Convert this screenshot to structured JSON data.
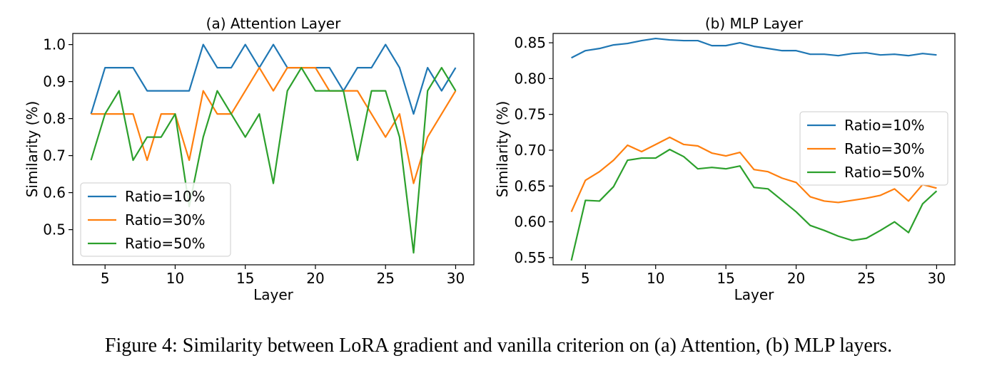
{
  "caption": "Figure 4: Similarity between LoRA gradient and vanilla criterion on (a) Attention, (b) MLP layers.",
  "chart_data": [
    {
      "type": "line",
      "title": "(a) Attention Layer",
      "xlabel": "Layer",
      "ylabel": "Similarity (%)",
      "xlim": [
        2.7,
        31.3
      ],
      "ylim": [
        0.405,
        1.03
      ],
      "xticks": [
        5,
        10,
        15,
        20,
        25,
        30
      ],
      "yticks": [
        0.5,
        0.6,
        0.7,
        0.8,
        0.9,
        1.0
      ],
      "ytick_labels": [
        "0.5",
        "0.6",
        "0.7",
        "0.8",
        "0.9",
        "1.0"
      ],
      "legend_position": "lower-left",
      "x": [
        4,
        5,
        6,
        7,
        8,
        9,
        10,
        11,
        12,
        13,
        14,
        15,
        16,
        17,
        18,
        19,
        20,
        21,
        22,
        23,
        24,
        25,
        26,
        27,
        28,
        29,
        30
      ],
      "series": [
        {
          "name": "Ratio=10%",
          "color": "#1f77b4",
          "values": [
            0.8125,
            0.9375,
            0.9375,
            0.9375,
            0.875,
            0.875,
            0.875,
            0.875,
            1.0,
            0.9375,
            0.9375,
            1.0,
            0.9375,
            1.0,
            0.9375,
            0.9375,
            0.9375,
            0.9375,
            0.875,
            0.9375,
            0.9375,
            1.0,
            0.9375,
            0.8125,
            0.9375,
            0.875,
            0.9375
          ]
        },
        {
          "name": "Ratio=30%",
          "color": "#ff7f0e",
          "values": [
            0.8125,
            0.8125,
            0.8125,
            0.8125,
            0.6875,
            0.8125,
            0.8125,
            0.6875,
            0.875,
            0.8125,
            0.8125,
            0.875,
            0.9375,
            0.875,
            0.9375,
            0.9375,
            0.9375,
            0.875,
            0.875,
            0.875,
            0.8125,
            0.75,
            0.8125,
            0.625,
            0.75,
            0.8125,
            0.875
          ]
        },
        {
          "name": "Ratio=50%",
          "color": "#2ca02c",
          "values": [
            0.6875,
            0.8125,
            0.875,
            0.6875,
            0.75,
            0.75,
            0.8125,
            0.5625,
            0.75,
            0.875,
            0.8125,
            0.75,
            0.8125,
            0.625,
            0.875,
            0.9375,
            0.875,
            0.875,
            0.875,
            0.6875,
            0.875,
            0.875,
            0.75,
            0.4375,
            0.875,
            0.9375,
            0.875
          ]
        }
      ]
    },
    {
      "type": "line",
      "title": "(b) MLP Layer",
      "xlabel": "Layer",
      "ylabel": "Similarity (%)",
      "xlim": [
        2.7,
        31.3
      ],
      "ylim": [
        0.54,
        0.863
      ],
      "xticks": [
        5,
        10,
        15,
        20,
        25,
        30
      ],
      "yticks": [
        0.55,
        0.6,
        0.65,
        0.7,
        0.75,
        0.8,
        0.85
      ],
      "ytick_labels": [
        "0.55",
        "0.60",
        "0.65",
        "0.70",
        "0.75",
        "0.80",
        "0.85"
      ],
      "legend_position": "center-right",
      "x": [
        4,
        5,
        6,
        7,
        8,
        9,
        10,
        11,
        12,
        13,
        14,
        15,
        16,
        17,
        18,
        19,
        20,
        21,
        22,
        23,
        24,
        25,
        26,
        27,
        28,
        29,
        30
      ],
      "series": [
        {
          "name": "Ratio=10%",
          "color": "#1f77b4",
          "values": [
            0.829,
            0.839,
            0.842,
            0.847,
            0.849,
            0.853,
            0.856,
            0.854,
            0.853,
            0.853,
            0.846,
            0.846,
            0.85,
            0.845,
            0.842,
            0.839,
            0.839,
            0.834,
            0.834,
            0.832,
            0.835,
            0.836,
            0.833,
            0.834,
            0.832,
            0.835,
            0.833
          ]
        },
        {
          "name": "Ratio=30%",
          "color": "#ff7f0e",
          "values": [
            0.614,
            0.658,
            0.67,
            0.686,
            0.707,
            0.698,
            0.708,
            0.718,
            0.708,
            0.706,
            0.696,
            0.692,
            0.697,
            0.673,
            0.67,
            0.661,
            0.655,
            0.635,
            0.629,
            0.627,
            0.63,
            0.633,
            0.637,
            0.646,
            0.629,
            0.652,
            0.647
          ]
        },
        {
          "name": "Ratio=50%",
          "color": "#2ca02c",
          "values": [
            0.546,
            0.63,
            0.629,
            0.649,
            0.686,
            0.689,
            0.689,
            0.701,
            0.691,
            0.674,
            0.676,
            0.674,
            0.678,
            0.648,
            0.646,
            0.63,
            0.614,
            0.595,
            0.588,
            0.58,
            0.574,
            0.577,
            0.588,
            0.6,
            0.585,
            0.625,
            0.643
          ]
        }
      ]
    }
  ]
}
